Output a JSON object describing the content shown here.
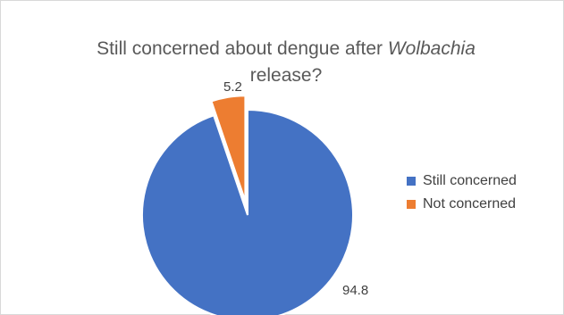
{
  "chart_data": {
    "type": "pie",
    "title_line1_prefix": "Still concerned about dengue after ",
    "title_line1_italic": "Wolbachia",
    "title_line2": "release?",
    "categories": [
      "Still concerned",
      "Not concerned"
    ],
    "values": [
      94.8,
      5.2
    ],
    "colors": [
      "#4472C4",
      "#ED7D31"
    ],
    "data_labels": [
      "94.8",
      "5.2"
    ],
    "exploded": "Not concerned",
    "legend_position": "right"
  }
}
